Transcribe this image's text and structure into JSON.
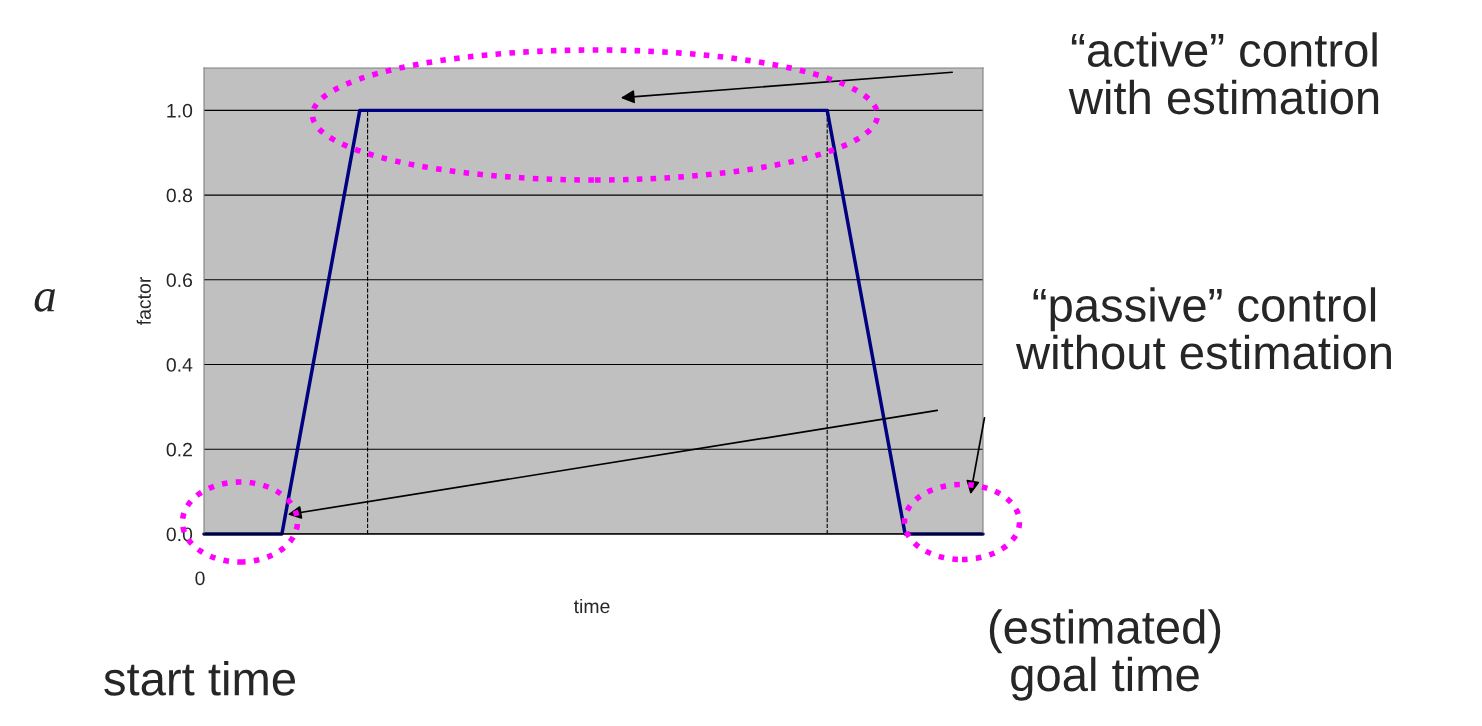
{
  "chart_data": {
    "type": "line",
    "categories": [
      null,
      null,
      null,
      null,
      null,
      null,
      null,
      null,
      null,
      null,
      null
    ],
    "values": [
      0,
      0,
      1,
      1,
      1,
      1,
      1,
      1,
      1,
      0,
      0
    ],
    "color": "#000080",
    "ylim": [
      0,
      1.1
    ],
    "yticks": [
      {
        "value": 0,
        "label": "0.0"
      },
      {
        "value": 0.2,
        "label": "0.2"
      },
      {
        "value": 0.4,
        "label": "0.4"
      },
      {
        "value": 0.6,
        "label": "0.6"
      },
      {
        "value": 0.8,
        "label": "0.8"
      },
      {
        "value": 1,
        "label": "1.0"
      }
    ],
    "grid": "y",
    "marker": "none",
    "line_style": "solid",
    "xlabel": "time",
    "ylabel": "factor",
    "annotations": [
      "a",
      "“active” control\nwith estimation",
      "“passive” control\nwithout estimation",
      "(estimated)\ngoal time",
      "start time",
      "0"
    ]
  }
}
